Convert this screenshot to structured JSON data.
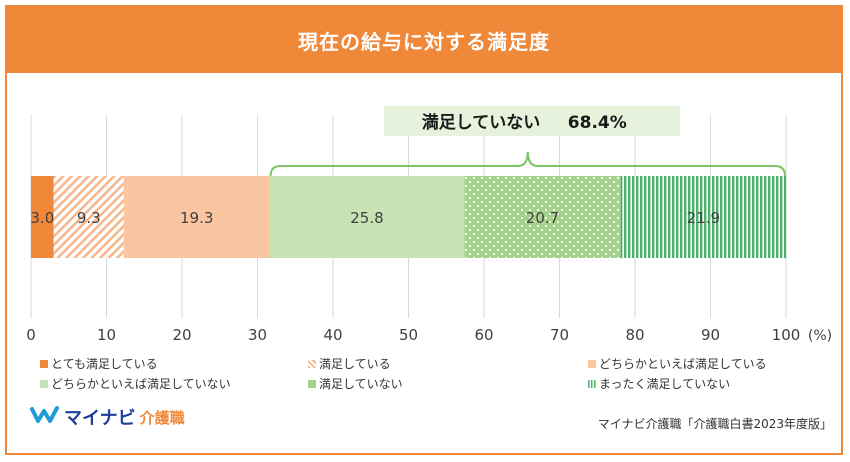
{
  "title": "現在の給与に対する満足度",
  "colors": {
    "header": "#f0883a",
    "very_satisfied": "#f0883a",
    "satisfied": "#f5b68a",
    "somewhat_satisfied": "#f9c6a1",
    "somewhat_unsatisfied": "#c7e2b3",
    "unsatisfied": "#a3d18a",
    "not_at_all": "#4caf6a",
    "callout_bg": "#e6f2dc",
    "brace": "#7cc466"
  },
  "chart_data": {
    "type": "bar",
    "orientation": "horizontal-stacked",
    "unit": "(%)",
    "xlim": [
      0,
      100
    ],
    "xticks": [
      "0",
      "10",
      "20",
      "30",
      "40",
      "50",
      "60",
      "70",
      "80",
      "90",
      "100"
    ],
    "grid": true,
    "series": [
      {
        "name": "とても満足している",
        "value": 3.0,
        "label": "3.0",
        "pattern": "solid",
        "color": "#f0883a"
      },
      {
        "name": "満足している",
        "value": 9.3,
        "label": "9.3",
        "pattern": "diagonal",
        "color": "#f5b68a"
      },
      {
        "name": "どちらかといえば満足している",
        "value": 19.3,
        "label": "19.3",
        "pattern": "solid",
        "color": "#f9c6a1"
      },
      {
        "name": "どちらかといえば満足していない",
        "value": 25.8,
        "label": "25.8",
        "pattern": "solid",
        "color": "#c7e2b3"
      },
      {
        "name": "満足していない",
        "value": 20.7,
        "label": "20.7",
        "pattern": "dots",
        "color": "#a3d18a"
      },
      {
        "name": "まったく満足していない",
        "value": 21.9,
        "label": "21.9",
        "pattern": "vertical-stripes",
        "color": "#4caf6a"
      }
    ],
    "annotation": {
      "label": "満足していない",
      "value": "68.4%",
      "from_series": 3,
      "to_series": 5
    }
  },
  "footer": {
    "logo_text": "マイナビ",
    "logo_sub": "介護職",
    "source": "マイナビ介護職「介護職白書2023年度版」"
  }
}
